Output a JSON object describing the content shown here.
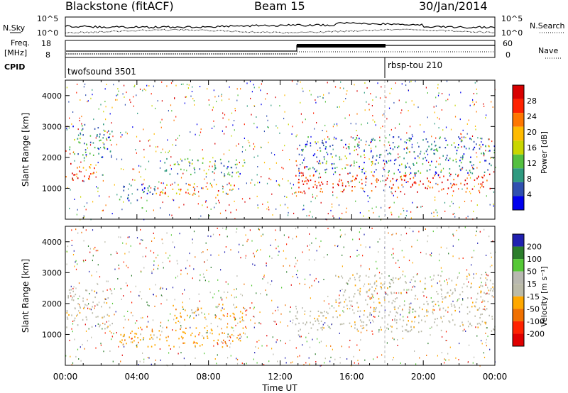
{
  "header": {
    "station": "Blackstone (fitACF)",
    "beam": "Beam 15",
    "date": "30/Jan/2014"
  },
  "noise_panel": {
    "left_label": "N.Sky",
    "right_label": "N.Search",
    "ticks": [
      "10^5",
      "10^0"
    ],
    "right_ticks": [
      "10^5",
      "10^0"
    ]
  },
  "freq_panel": {
    "left_label_1": "Freq.",
    "left_label_2": "[MHz]",
    "left_ticks": [
      "18",
      "8"
    ],
    "right_label": "Nave",
    "right_ticks": [
      "60",
      "0"
    ],
    "cpid_label": "CPID",
    "programs": [
      "twofsound 3501",
      "rbsp-tou 210"
    ]
  },
  "colors": {
    "power": [
      "#d80000",
      "#ff2200",
      "#ff7700",
      "#ffbb00",
      "#c9d600",
      "#54c040",
      "#2f9a80",
      "#3050b0",
      "#0000ee"
    ],
    "velocity": [
      "#2020b0",
      "#2b7d2b",
      "#55c836",
      "#b8b8b0",
      "#bbbba8",
      "#ffa800",
      "#f07000",
      "#ff2200",
      "#e00000"
    ]
  },
  "chart_data": [
    {
      "type": "heatmap",
      "name": "power",
      "xlabel": "",
      "ylabel": "Slant Range [km]",
      "xlim": [
        "00:00",
        "24:00"
      ],
      "ylim": [
        0,
        4500
      ],
      "yticks": [
        "1000",
        "2000",
        "3000",
        "4000"
      ],
      "colorbar_label": "Power [dB]",
      "colorbar_ticks": [
        "28",
        "24",
        "20",
        "16",
        "12",
        "8",
        "4"
      ],
      "colorbar_range": [
        0,
        32
      ],
      "echo_regions": [
        {
          "t0": 0.0,
          "t1": 1.6,
          "r0": 1200,
          "r1": 1900,
          "level": 26
        },
        {
          "t0": 0.2,
          "t1": 2.6,
          "r0": 2000,
          "r1": 3100,
          "level": 8
        },
        {
          "t0": 3.0,
          "t1": 5.0,
          "r0": 600,
          "r1": 1200,
          "level": 6
        },
        {
          "t0": 5.0,
          "t1": 9.5,
          "r0": 800,
          "r1": 1200,
          "level": 22
        },
        {
          "t0": 5.5,
          "t1": 10.0,
          "r0": 1400,
          "r1": 2000,
          "level": 10
        },
        {
          "t0": 12.8,
          "t1": 13.4,
          "r0": 800,
          "r1": 2000,
          "level": 28
        },
        {
          "t0": 13.0,
          "t1": 24.0,
          "r0": 900,
          "r1": 1500,
          "level": 28
        },
        {
          "t0": 13.0,
          "t1": 24.0,
          "r0": 1500,
          "r1": 2700,
          "level": 8
        }
      ]
    },
    {
      "type": "heatmap",
      "name": "velocity",
      "xlabel": "Time UT",
      "ylabel": "Slant Range [km]",
      "xlim": [
        "00:00",
        "24:00"
      ],
      "ylim": [
        0,
        4500
      ],
      "yticks": [
        "1000",
        "2000",
        "3000",
        "4000"
      ],
      "xticks": [
        "00:00",
        "04:00",
        "08:00",
        "12:00",
        "16:00",
        "20:00",
        "00:00"
      ],
      "colorbar_label": "Velocity [m s⁻¹]",
      "colorbar_ticks": [
        "200",
        "100",
        "50",
        "15",
        "-15",
        "-50",
        "-100",
        "-200"
      ],
      "colorbar_range": [
        -250,
        250
      ],
      "echo_regions": [
        {
          "t0": 0.0,
          "t1": 2.6,
          "r0": 1200,
          "r1": 2500,
          "level": 0
        },
        {
          "t0": 3.0,
          "t1": 10.0,
          "r0": 600,
          "r1": 1300,
          "level": -60
        },
        {
          "t0": 6.0,
          "t1": 10.0,
          "r0": 1400,
          "r1": 2000,
          "level": -50
        },
        {
          "t0": 12.8,
          "t1": 13.4,
          "r0": 800,
          "r1": 2000,
          "level": 40
        },
        {
          "t0": 13.4,
          "t1": 24.0,
          "r0": 1100,
          "r1": 1800,
          "level": 0
        },
        {
          "t0": 15.0,
          "t1": 24.0,
          "r0": 1800,
          "r1": 3000,
          "level": 0
        }
      ]
    }
  ]
}
